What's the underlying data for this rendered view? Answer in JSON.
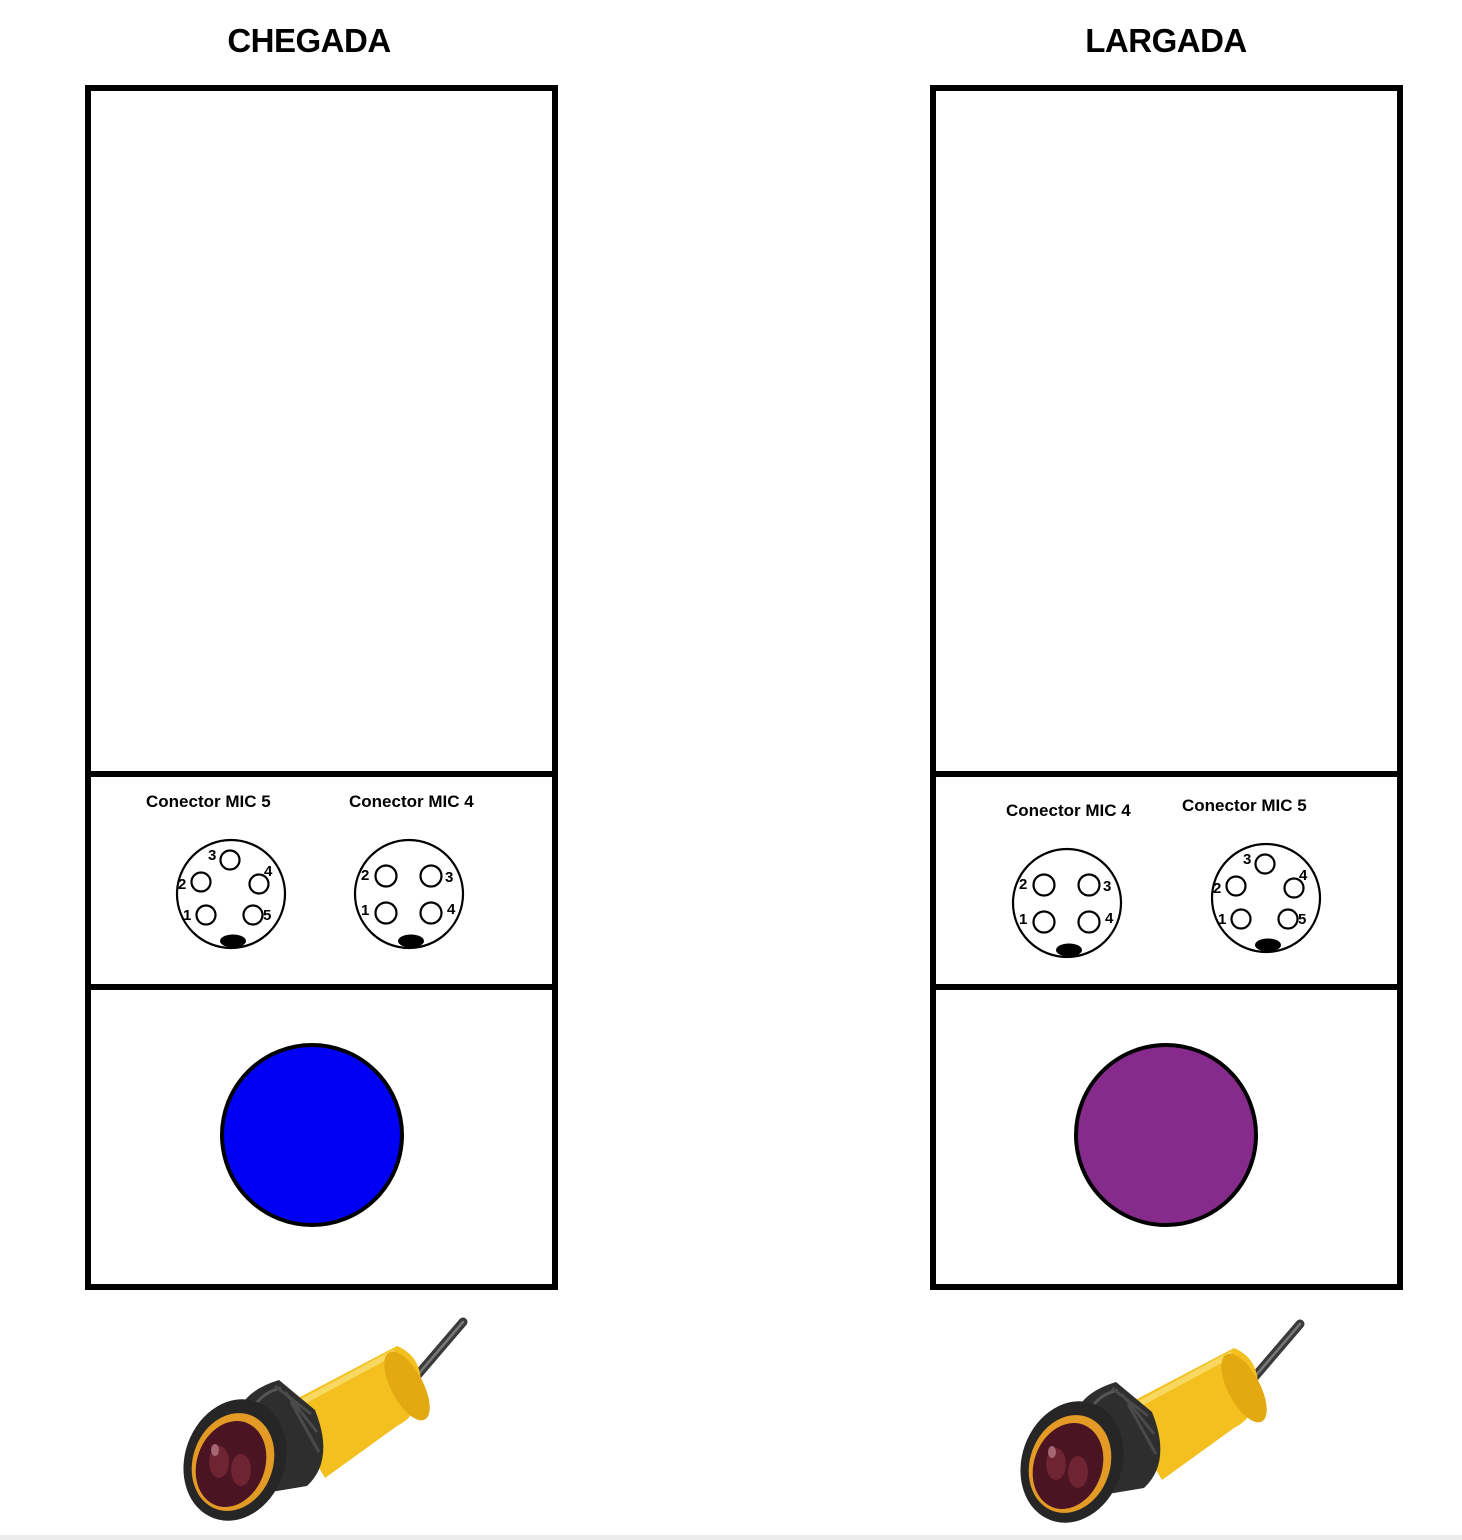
{
  "units": [
    {
      "title": "CHEGADA",
      "connector_labels": [
        "Conector MIC 5",
        "Conector MIC 4"
      ],
      "led_color": "#0000f5"
    },
    {
      "title": "LARGADA",
      "connector_labels": [
        "Conector MIC 4",
        "Conector MIC 5"
      ],
      "led_color": "#862b8c"
    }
  ],
  "pin_labels": {
    "mic5": [
      "1",
      "2",
      "3",
      "4",
      "5"
    ],
    "mic4": [
      "1",
      "2",
      "3",
      "4"
    ]
  },
  "icons": [
    "mic5-connector-icon",
    "mic4-connector-icon",
    "photoelectric-sensor-icon"
  ]
}
